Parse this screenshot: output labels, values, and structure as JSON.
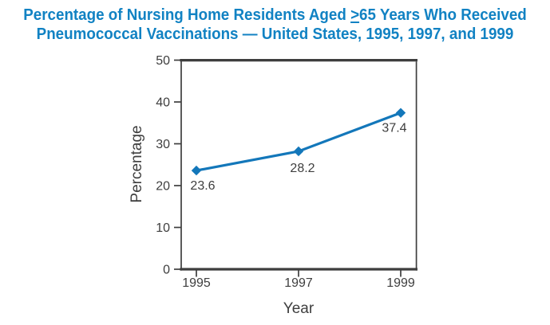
{
  "title": {
    "line1_pre": "Percentage of Nursing Home Residents Aged ",
    "line1_geq_symbol": ">",
    "line1_post": "65 Years Who Received",
    "line2": "Pneumococcal Vaccinations — United States, 1995, 1997, and 1999"
  },
  "chart_data": {
    "type": "line",
    "title": "Percentage of Nursing Home Residents Aged ≥65 Years Who Received Pneumococcal Vaccinations — United States, 1995, 1997, and 1999",
    "x": [
      1995,
      1997,
      1999
    ],
    "categories": [
      "1995",
      "1997",
      "1999"
    ],
    "values": [
      23.6,
      28.2,
      37.4
    ],
    "point_labels": [
      "23.6",
      "28.2",
      "37.4"
    ],
    "xlabel": "Year",
    "ylabel": "Percentage",
    "ylim": [
      0,
      50
    ],
    "yticks": [
      0,
      10,
      20,
      30,
      40,
      50
    ],
    "grid": false,
    "legend": "none",
    "marker": "diamond",
    "line_color": "#1377BA"
  },
  "colors": {
    "title_blue": "#1182C3",
    "series_blue": "#1377BA",
    "axis_dark": "#3E3E3E"
  }
}
